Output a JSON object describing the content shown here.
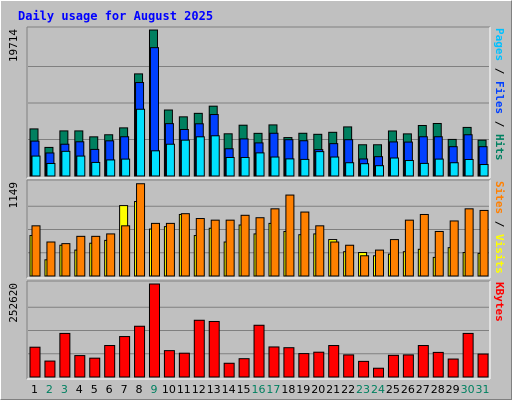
{
  "chart_data": {
    "type": "bar",
    "title": "Daily usage for August 2025",
    "categories": [
      "1",
      "2",
      "3",
      "4",
      "5",
      "6",
      "7",
      "8",
      "9",
      "10",
      "11",
      "12",
      "13",
      "14",
      "15",
      "16",
      "17",
      "18",
      "19",
      "20",
      "21",
      "22",
      "23",
      "24",
      "25",
      "26",
      "27",
      "28",
      "29",
      "30",
      "31"
    ],
    "weekend_days": [
      "2",
      "3",
      "9",
      "16",
      "17",
      "23",
      "24",
      "30",
      "31"
    ],
    "panels": [
      {
        "ymax_label": "19714",
        "ymax": 19714,
        "ylabel_parts": [
          {
            "text": "Pages",
            "color": "#00C0FF"
          },
          {
            "text": " / ",
            "color": "#000000"
          },
          {
            "text": "Files",
            "color": "#0040FF"
          },
          {
            "text": " / ",
            "color": "#000000"
          },
          {
            "text": "Hits",
            "color": "#008060"
          }
        ],
        "series": [
          {
            "key": "hits",
            "color": "#008060",
            "values": [
              6360,
              3860,
              6090,
              6090,
              5290,
              5570,
              6500,
              13790,
              19710,
              8910,
              7990,
              8460,
              9430,
              5700,
              6860,
              5760,
              6900,
              5190,
              5770,
              5630,
              5900,
              6630,
              4220,
              4220,
              6080,
              5690,
              6820,
              7090,
              4940,
              6560,
              4840
            ]
          },
          {
            "key": "files",
            "color": "#0040FF",
            "values": [
              4710,
              3110,
              4290,
              4620,
              3590,
              4750,
              5300,
              12620,
              17330,
              7070,
              6280,
              7050,
              8300,
              3680,
              5010,
              4470,
              5770,
              4900,
              4760,
              3560,
              4370,
              4900,
              2300,
              2610,
              4600,
              4580,
              5300,
              5300,
              3960,
              5570,
              3960
            ]
          },
          {
            "key": "pages",
            "color": "#00E0FF",
            "values": [
              2690,
              1690,
              3330,
              2690,
              1830,
              2170,
              2280,
              9010,
              3400,
              4290,
              4840,
              5290,
              5430,
              2500,
              2500,
              3120,
              2560,
              2310,
              2240,
              3290,
              2560,
              1790,
              1660,
              1390,
              2430,
              2090,
              1700,
              2280,
              1790,
              2230,
              1550
            ]
          }
        ]
      },
      {
        "ymax_label": "1149",
        "ymax": 1149,
        "ylabel_parts": [
          {
            "text": "Sites",
            "color": "#FF8000"
          },
          {
            "text": " / ",
            "color": "#000000"
          },
          {
            "text": "Visits",
            "color": "#FFFF00"
          }
        ],
        "series": [
          {
            "key": "visits",
            "color": "#FFFF00",
            "values": [
              500,
              200,
              380,
              320,
              405,
              440,
              870,
              920,
              580,
              610,
              760,
              500,
              590,
              420,
              630,
              520,
              650,
              550,
              510,
              520,
              450,
              300,
              290,
              250,
              270,
              300,
              330,
              230,
              350,
              290,
              280
            ]
          },
          {
            "key": "sites",
            "color": "#FF8000",
            "values": [
              620,
              420,
              400,
              490,
              490,
              520,
              620,
              1140,
              650,
              650,
              770,
              710,
              690,
              690,
              750,
              720,
              830,
              1000,
              790,
              620,
              420,
              380,
              250,
              320,
              450,
              690,
              760,
              550,
              680,
              830,
              810
            ]
          }
        ]
      },
      {
        "ymax_label": "252620",
        "ymax": 252620,
        "ylabel_parts": [
          {
            "text": "KBytes",
            "color": "#FF0000"
          }
        ],
        "series": [
          {
            "key": "kbytes",
            "color": "#FF0000",
            "values": [
              80940,
              43280,
              118380,
              58160,
              51170,
              85520,
              109900,
              137860,
              252620,
              71640,
              64650,
              154120,
              150790,
              37330,
              49790,
              140550,
              81640,
              79620,
              63630,
              67400,
              85520,
              59930,
              42460,
              23830,
              58870,
              59930,
              85520,
              66840,
              48770,
              118380,
              62400
            ]
          }
        ]
      }
    ]
  }
}
